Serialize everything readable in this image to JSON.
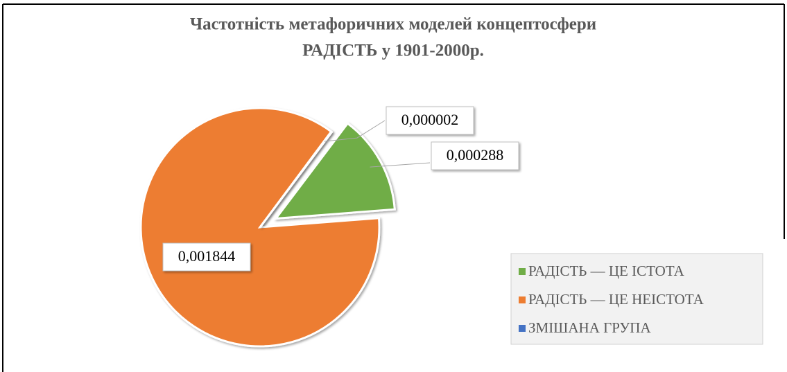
{
  "chart_data": {
    "type": "pie",
    "title": [
      "Частотність  метафоричних моделей концептосфери",
      "РАДІСТЬ у 1901-2000р."
    ],
    "categories": [
      "РАДІСТЬ — ЦЕ ІСТОТА",
      "РАДІСТЬ — ЦЕ НЕІСТОТА",
      "ЗМІШАНА ГРУПА"
    ],
    "values": [
      0.000288,
      0.001844,
      2e-06
    ],
    "value_labels": [
      "0,000288",
      "0,001844",
      "0,000002"
    ],
    "colors": [
      "#70ad47",
      "#ed7d31",
      "#4472c4"
    ],
    "legend": "right"
  }
}
